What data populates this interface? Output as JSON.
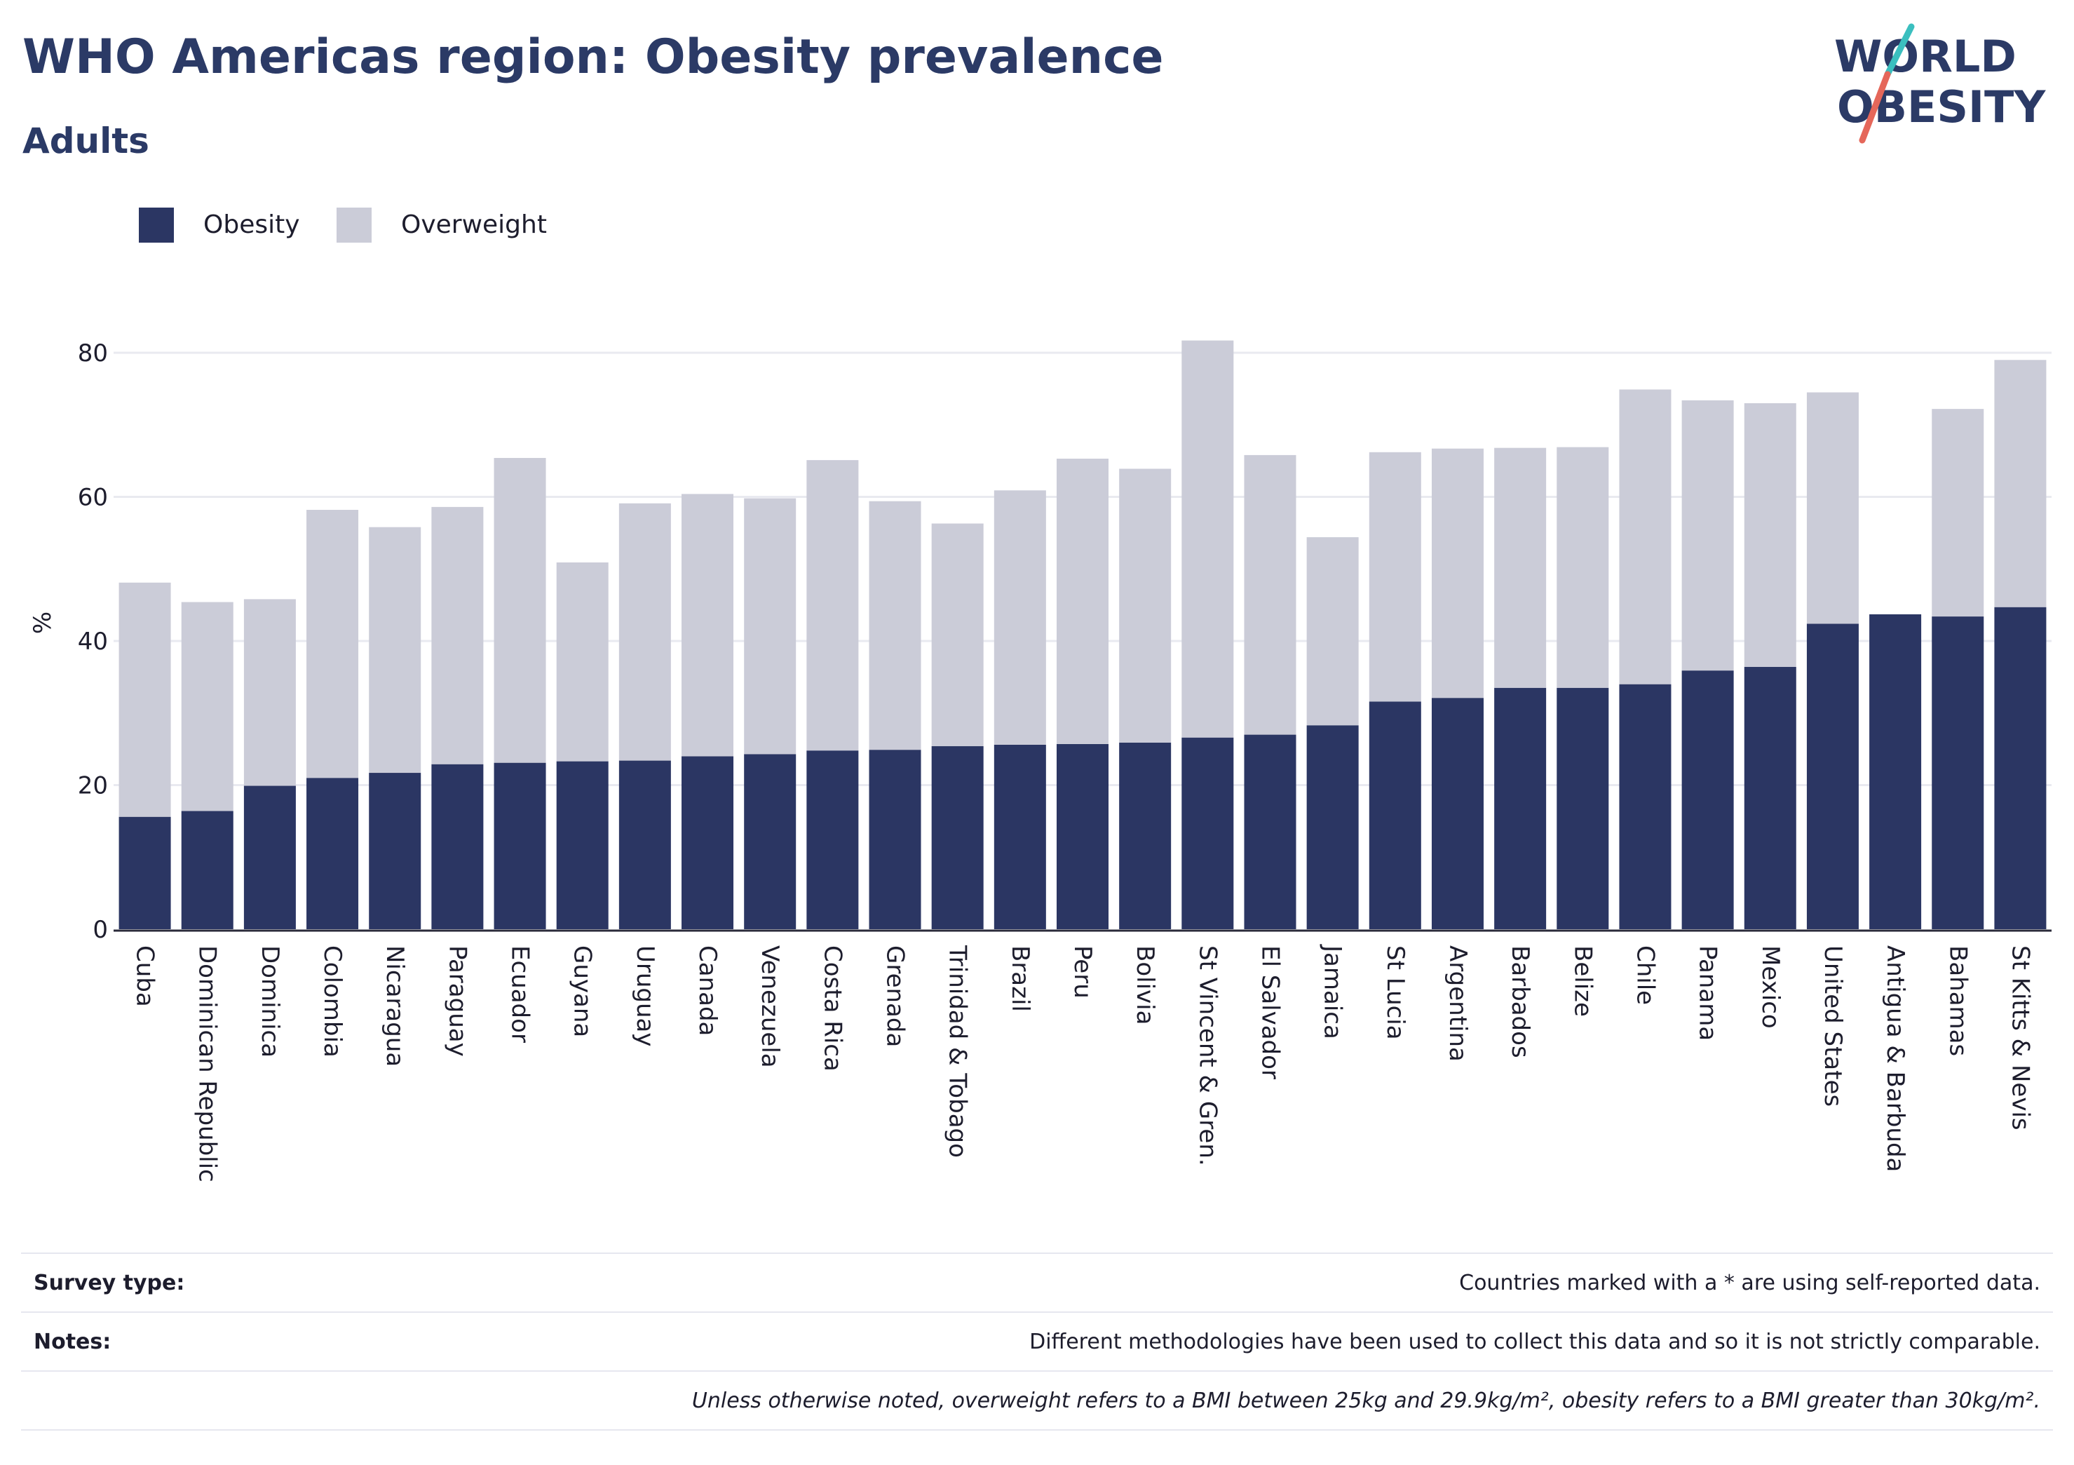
{
  "title": "WHO Americas region: Obesity prevalence",
  "subtitle": "Adults",
  "logo": {
    "line1": "WORLD",
    "line2": "OBESITY"
  },
  "colors": {
    "obesity": "#2b3663",
    "overweight": "#cbccd8",
    "title": "#2b3a66",
    "logo_slash_top": "#3bbfbf",
    "logo_slash_bottom": "#e5675a"
  },
  "legend": [
    {
      "label": "Obesity",
      "color": "#2b3663"
    },
    {
      "label": "Overweight",
      "color": "#cbccd8"
    }
  ],
  "chart_data": {
    "type": "bar",
    "stacked": true,
    "ylabel": "%",
    "ylim": [
      0,
      80
    ],
    "yticks": [
      0,
      20,
      40,
      60,
      80
    ],
    "grid": true,
    "legend_position": "top-left",
    "categories": [
      "Cuba",
      "Dominican Republic",
      "Dominica",
      "Colombia",
      "Nicaragua",
      "Paraguay",
      "Ecuador",
      "Guyana",
      "Uruguay",
      "Canada",
      "Venezuela",
      "Costa Rica",
      "Grenada",
      "Trinidad & Tobago",
      "Brazil",
      "Peru",
      "Bolivia",
      "St Vincent & Gren.",
      "El Salvador",
      "Jamaica",
      "St Lucia",
      "Argentina",
      "Barbados",
      "Belize",
      "Chile",
      "Panama",
      "Mexico",
      "United States",
      "Antigua & Barbuda",
      "Bahamas",
      "St Kitts & Nevis"
    ],
    "series": [
      {
        "name": "Obesity",
        "values": [
          15.6,
          16.4,
          19.9,
          21.0,
          21.7,
          22.9,
          23.1,
          23.3,
          23.4,
          24.0,
          24.3,
          24.8,
          24.9,
          25.4,
          25.6,
          25.7,
          25.9,
          26.6,
          27.0,
          28.3,
          31.6,
          32.1,
          33.5,
          33.5,
          34.0,
          35.9,
          36.4,
          42.4,
          43.7,
          43.4,
          44.7
        ]
      },
      {
        "name": "Overweight",
        "values": [
          32.5,
          29.0,
          25.9,
          37.2,
          34.1,
          35.7,
          42.3,
          27.6,
          35.7,
          36.4,
          35.5,
          40.3,
          34.5,
          30.9,
          35.3,
          39.6,
          38.0,
          55.1,
          38.8,
          26.1,
          34.6,
          34.6,
          33.3,
          33.4,
          40.9,
          37.5,
          36.6,
          32.1,
          0.0,
          28.8,
          34.3
        ]
      }
    ]
  },
  "footer": {
    "survey_label": "Survey type:",
    "survey_value": "Countries marked with a * are using self-reported data.",
    "notes_label": "Notes:",
    "notes_value": "Different methodologies have been used to collect this data and so it is not strictly comparable.",
    "definition": "Unless otherwise noted, overweight refers to a BMI between 25kg and 29.9kg/m², obesity refers to a BMI greater than 30kg/m²."
  }
}
